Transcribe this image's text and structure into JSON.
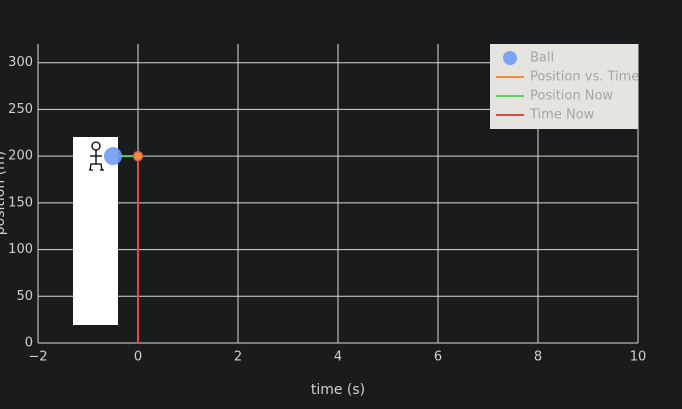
{
  "chart_data": {
    "type": "line",
    "x_label": "time (s)",
    "y_label": "position (m)",
    "xlim": [
      -2,
      10
    ],
    "ylim": [
      0,
      320
    ],
    "xticks": [
      {
        "value": -2,
        "label": "−2"
      },
      0,
      2,
      4,
      6,
      8,
      10
    ],
    "yticks": [
      0,
      50,
      100,
      150,
      200,
      250,
      300
    ],
    "grid": true,
    "legend": "top-right",
    "series": [
      {
        "name": "Ball",
        "mode": "markers",
        "color": "#6f9cf5",
        "x": [
          -0.5
        ],
        "values": [
          200
        ]
      },
      {
        "name": "Position vs. Time",
        "mode": "lines",
        "color": "#f58a3a",
        "x": [
          0
        ],
        "values": [
          200
        ]
      },
      {
        "name": "Position Now",
        "mode": "lines",
        "color": "#5fcf6a",
        "x": [
          -0.5,
          0
        ],
        "values": [
          200,
          200
        ]
      },
      {
        "name": "Time Now",
        "mode": "lines",
        "color": "#e04848",
        "x": [
          0,
          0
        ],
        "values": [
          0,
          200
        ]
      }
    ]
  }
}
